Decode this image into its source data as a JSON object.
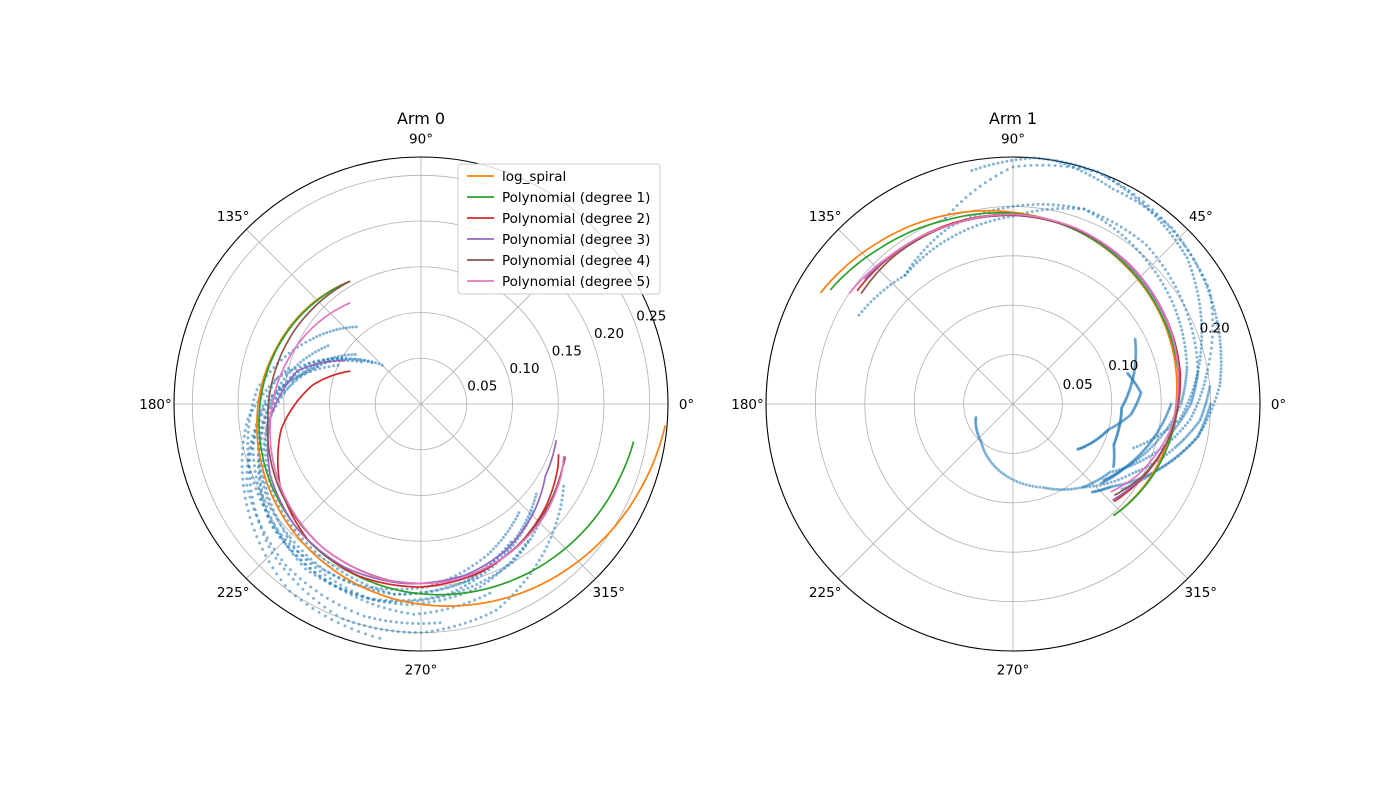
{
  "chart_data": [
    {
      "type": "scatter",
      "projection": "polar",
      "title": "Arm 0",
      "theta_ticks_deg": [
        0,
        45,
        90,
        135,
        180,
        225,
        270,
        315
      ],
      "theta_tick_labels": [
        "0°",
        "",
        "90°",
        "135°",
        "180°",
        "225°",
        "270°",
        "315°"
      ],
      "r_ticks": [
        0.05,
        0.1,
        0.15,
        0.2,
        0.25
      ],
      "r_tick_labels": [
        "0.05",
        "0.10",
        "0.15",
        "0.20",
        "0.25"
      ],
      "rlim": [
        0,
        0.27
      ],
      "grid": true,
      "legend": "top-right",
      "points": {
        "color": "#1f77b4",
        "tracks": [
          {
            "theta": [
              155,
              175,
              200,
              225,
              250,
              270,
              290,
              310,
              330
            ],
            "r": [
              0.1,
              0.16,
              0.2,
              0.23,
              0.25,
              0.25,
              0.24,
              0.21,
              0.18
            ]
          },
          {
            "theta": [
              145,
              165,
              190,
              215,
              240,
              262,
              285,
              305,
              322
            ],
            "r": [
              0.08,
              0.14,
              0.18,
              0.2,
              0.21,
              0.21,
              0.2,
              0.18,
              0.16
            ]
          },
          {
            "theta": [
              150,
              170,
              195,
              220,
              245,
              268,
              290
            ],
            "r": [
              0.1,
              0.16,
              0.19,
              0.21,
              0.22,
              0.23,
              0.22
            ]
          },
          {
            "theta": [
              140,
              160,
              185,
              210,
              235,
              258,
              280,
              300,
              318
            ],
            "r": [
              0.07,
              0.13,
              0.17,
              0.2,
              0.22,
              0.22,
              0.21,
              0.2,
              0.18
            ]
          },
          {
            "theta": [
              160,
              180,
              205,
              230,
              255,
              275
            ],
            "r": [
              0.12,
              0.17,
              0.21,
              0.23,
              0.24,
              0.24
            ]
          },
          {
            "theta": [
              135,
              155,
              180,
              205,
              230,
              255,
              278,
              298,
              316
            ],
            "r": [
              0.06,
              0.11,
              0.16,
              0.19,
              0.21,
              0.22,
              0.21,
              0.19,
              0.17
            ]
          },
          {
            "theta": [
              148,
              168,
              192,
              218,
              243,
              266,
              288,
              308
            ],
            "r": [
              0.12,
              0.15,
              0.18,
              0.21,
              0.22,
              0.22,
              0.21,
              0.19
            ]
          },
          {
            "theta": [
              165,
              185,
              210,
              235,
              260
            ],
            "r": [
              0.15,
              0.19,
              0.22,
              0.25,
              0.26
            ]
          },
          {
            "theta": [
              130,
              150,
              175,
              200,
              225,
              250,
              272,
              294,
              312
            ],
            "r": [
              0.11,
              0.14,
              0.18,
              0.2,
              0.21,
              0.21,
              0.2,
              0.18,
              0.16
            ]
          },
          {
            "theta": [
              143,
              163,
              188,
              212,
              238,
              262,
              284,
              303
            ],
            "r": [
              0.09,
              0.13,
              0.17,
              0.19,
              0.2,
              0.21,
              0.2,
              0.18
            ]
          }
        ]
      },
      "series": [
        {
          "name": "log_spiral",
          "color": "#ff7f0e",
          "theta": [
            120,
            140,
            160,
            180,
            200,
            220,
            240,
            260,
            280,
            300,
            320,
            340,
            355
          ],
          "r": [
            0.155,
            0.163,
            0.17,
            0.178,
            0.186,
            0.195,
            0.204,
            0.214,
            0.224,
            0.235,
            0.246,
            0.258,
            0.268
          ]
        },
        {
          "name": "Polynomial (degree 1)",
          "color": "#2ca02c",
          "theta": [
            120,
            140,
            160,
            180,
            200,
            220,
            240,
            260,
            280,
            300,
            320,
            340,
            350
          ],
          "r": [
            0.155,
            0.162,
            0.169,
            0.176,
            0.183,
            0.19,
            0.197,
            0.204,
            0.211,
            0.218,
            0.225,
            0.232,
            0.236
          ]
        },
        {
          "name": "Polynomial (degree 2)",
          "color": "#d62728",
          "theta": [
            155,
            170,
            190,
            210,
            230,
            250,
            270,
            290,
            305,
            320,
            335,
            340
          ],
          "r": [
            0.085,
            0.12,
            0.155,
            0.178,
            0.193,
            0.2,
            0.2,
            0.195,
            0.187,
            0.177,
            0.165,
            0.16
          ]
        },
        {
          "name": "Polynomial (degree 3)",
          "color": "#9467bd",
          "theta": [
            150,
            165,
            185,
            205,
            225,
            245,
            265,
            285,
            300,
            315,
            330,
            345
          ],
          "r": [
            0.095,
            0.14,
            0.165,
            0.182,
            0.192,
            0.197,
            0.197,
            0.193,
            0.185,
            0.172,
            0.157,
            0.153
          ]
        },
        {
          "name": "Polynomial (degree 4)",
          "color": "#8c564b",
          "theta": [
            120,
            140,
            165,
            185,
            210,
            235,
            260,
            282,
            300,
            318,
            335,
            340
          ],
          "r": [
            0.155,
            0.158,
            0.163,
            0.168,
            0.18,
            0.19,
            0.196,
            0.196,
            0.19,
            0.18,
            0.17,
            0.168
          ]
        },
        {
          "name": "Polynomial (degree 5)",
          "color": "#e377c2",
          "theta": [
            125,
            145,
            165,
            185,
            210,
            235,
            258,
            280,
            300,
            318,
            333,
            340
          ],
          "r": [
            0.135,
            0.145,
            0.155,
            0.165,
            0.178,
            0.19,
            0.196,
            0.196,
            0.19,
            0.182,
            0.172,
            0.166
          ]
        }
      ]
    },
    {
      "type": "scatter",
      "projection": "polar",
      "title": "Arm 1",
      "theta_ticks_deg": [
        0,
        45,
        90,
        135,
        180,
        225,
        270,
        315
      ],
      "theta_tick_labels": [
        "0°",
        "45°",
        "90°",
        "135°",
        "180°",
        "225°",
        "270°",
        "315°"
      ],
      "r_ticks": [
        0.05,
        0.1,
        0.15,
        0.2
      ],
      "r_tick_labels": [
        "0.05",
        "0.10",
        "",
        "0.20"
      ],
      "rlim": [
        0,
        0.25
      ],
      "grid": true,
      "points": {
        "color": "#1f77b4",
        "tracks": [
          {
            "theta": [
              110,
              90,
              70,
              50,
              30,
              10,
              355,
              340,
              325,
              310
            ],
            "r": [
              0.2,
              0.24,
              0.25,
              0.24,
              0.23,
              0.2,
              0.18,
              0.15,
              0.12,
              0.11
            ]
          },
          {
            "theta": [
              130,
              110,
              90,
              70,
              50,
              30,
              12,
              0,
              345,
              330,
              318
            ],
            "r": [
              0.17,
              0.19,
              0.2,
              0.21,
              0.2,
              0.19,
              0.18,
              0.17,
              0.15,
              0.13,
              0.12
            ]
          },
          {
            "theta": [
              150,
              130,
              110,
              90,
              70,
              50,
              30,
              10,
              355,
              340
            ],
            "r": [
              0.18,
              0.17,
              0.18,
              0.19,
              0.21,
              0.21,
              0.2,
              0.19,
              0.17,
              0.13
            ]
          },
          {
            "theta": [
              80,
              65,
              48,
              32,
              18,
              5,
              350,
              335,
              322
            ],
            "r": [
              0.25,
              0.24,
              0.24,
              0.23,
              0.22,
              0.21,
              0.19,
              0.16,
              0.14
            ]
          },
          {
            "theta": [
              100,
              85,
              70,
              55,
              40,
              25,
              10,
              0,
              348
            ],
            "r": [
              0.24,
              0.25,
              0.25,
              0.24,
              0.23,
              0.21,
              0.19,
              0.18,
              0.16
            ]
          },
          {
            "theta": [
              0,
              350,
              340,
              330,
              320
            ],
            "r": [
              0.16,
              0.15,
              0.14,
              0.13,
              0.12
            ]
          },
          {
            "theta": [
              15,
              5,
              355,
              345,
              335,
              325
            ],
            "r": [
              0.12,
              0.13,
              0.12,
              0.1,
              0.09,
              0.08
            ]
          },
          {
            "theta": [
              200,
              230,
              260,
              290,
              310,
              330,
              345,
              355,
              5
            ],
            "r": [
              0.04,
              0.05,
              0.07,
              0.09,
              0.11,
              0.14,
              0.17,
              0.19,
              0.2
            ]
          },
          {
            "theta": [
              0,
              350,
              340,
              330,
              320,
              312
            ],
            "r": [
              0.2,
              0.19,
              0.17,
              0.15,
              0.13,
              0.12
            ]
          },
          {
            "theta": [
              28,
              18,
              8,
              358,
              348,
              338,
              328
            ],
            "r": [
              0.14,
              0.13,
              0.12,
              0.11,
              0.11,
              0.11,
              0.12
            ]
          }
        ]
      },
      "series": [
        {
          "name": "log_spiral",
          "color": "#ff7f0e",
          "theta": [
            150,
            130,
            110,
            90,
            70,
            50,
            30,
            10,
            350,
            330,
            312
          ],
          "r": [
            0.225,
            0.213,
            0.203,
            0.194,
            0.187,
            0.18,
            0.174,
            0.168,
            0.162,
            0.157,
            0.152
          ]
        },
        {
          "name": "Polynomial (degree 1)",
          "color": "#2ca02c",
          "theta": [
            148,
            130,
            110,
            90,
            70,
            50,
            30,
            10,
            350,
            330,
            312
          ],
          "r": [
            0.218,
            0.207,
            0.198,
            0.193,
            0.187,
            0.181,
            0.175,
            0.17,
            0.164,
            0.158,
            0.152
          ]
        },
        {
          "name": "Polynomial (degree 2)",
          "color": "#d62728",
          "theta": [
            144,
            130,
            110,
            90,
            70,
            50,
            30,
            10,
            350,
            332,
            316
          ],
          "r": [
            0.195,
            0.194,
            0.193,
            0.192,
            0.188,
            0.184,
            0.178,
            0.172,
            0.163,
            0.152,
            0.142
          ]
        },
        {
          "name": "Polynomial (degree 3)",
          "color": "#9467bd",
          "theta": [
            140,
            125,
            110,
            90,
            70,
            50,
            30,
            10,
            350,
            330,
            316
          ],
          "r": [
            0.196,
            0.194,
            0.192,
            0.191,
            0.188,
            0.183,
            0.177,
            0.171,
            0.163,
            0.15,
            0.14
          ]
        },
        {
          "name": "Polynomial (degree 4)",
          "color": "#8c564b",
          "theta": [
            144,
            130,
            110,
            90,
            70,
            50,
            30,
            10,
            350,
            332,
            318
          ],
          "r": [
            0.19,
            0.192,
            0.192,
            0.191,
            0.188,
            0.184,
            0.178,
            0.171,
            0.163,
            0.151,
            0.138
          ]
        },
        {
          "name": "Polynomial (degree 5)",
          "color": "#e377c2",
          "theta": [
            146,
            130,
            110,
            90,
            70,
            50,
            30,
            10,
            350,
            330,
            318
          ],
          "r": [
            0.2,
            0.195,
            0.192,
            0.192,
            0.189,
            0.184,
            0.178,
            0.17,
            0.161,
            0.145,
            0.133
          ]
        }
      ]
    }
  ]
}
